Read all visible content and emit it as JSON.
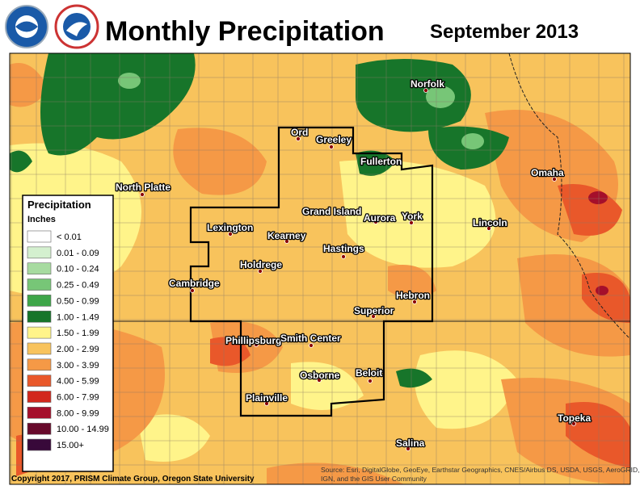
{
  "header": {
    "title": "Monthly Precipitation",
    "period": "September 2013"
  },
  "legend": {
    "title": "Precipitation",
    "units": "Inches",
    "items": [
      {
        "label": "< 0.01",
        "color": "#ffffff"
      },
      {
        "label": "0.01 - 0.09",
        "color": "#d4f0cf"
      },
      {
        "label": "0.10 - 0.24",
        "color": "#a7dba0"
      },
      {
        "label": "0.25 - 0.49",
        "color": "#77c677"
      },
      {
        "label": "0.50 - 0.99",
        "color": "#3ea649"
      },
      {
        "label": "1.00 - 1.49",
        "color": "#17752a"
      },
      {
        "label": "1.50 - 1.99",
        "color": "#fff48a"
      },
      {
        "label": "2.00 - 2.99",
        "color": "#f8c35c"
      },
      {
        "label": "3.00 - 3.99",
        "color": "#f59946"
      },
      {
        "label": "4.00 - 5.99",
        "color": "#e9582a"
      },
      {
        "label": "6.00 - 7.99",
        "color": "#d2281d"
      },
      {
        "label": "8.00 - 9.99",
        "color": "#a50f2b"
      },
      {
        "label": "10.00 - 14.99",
        "color": "#680a2b"
      },
      {
        "label": "15.00+",
        "color": "#38093a"
      }
    ]
  },
  "cities": [
    "Norfolk",
    "Ord",
    "Greeley",
    "Fullerton",
    "North Platte",
    "Omaha",
    "Grand Island",
    "Aurora",
    "York",
    "Lincoln",
    "Lexington",
    "Kearney",
    "Hastings",
    "Holdrege",
    "Cambridge",
    "Hebron",
    "Superior",
    "Phillipsburg",
    "Smith Center",
    "Osborne",
    "Beloit",
    "Plainville",
    "Topeka",
    "Salina"
  ],
  "footer": {
    "copyright": "Copyright 2017, PRISM Climate Group, Oregon State University",
    "source": [
      "Source: Esri, DigitalGlobe, GeoEye, Earthstar Geographics, CNES/Airbus DS, USDA, USGS, AeroGRID,",
      "IGN, and the GIS User Community"
    ]
  }
}
